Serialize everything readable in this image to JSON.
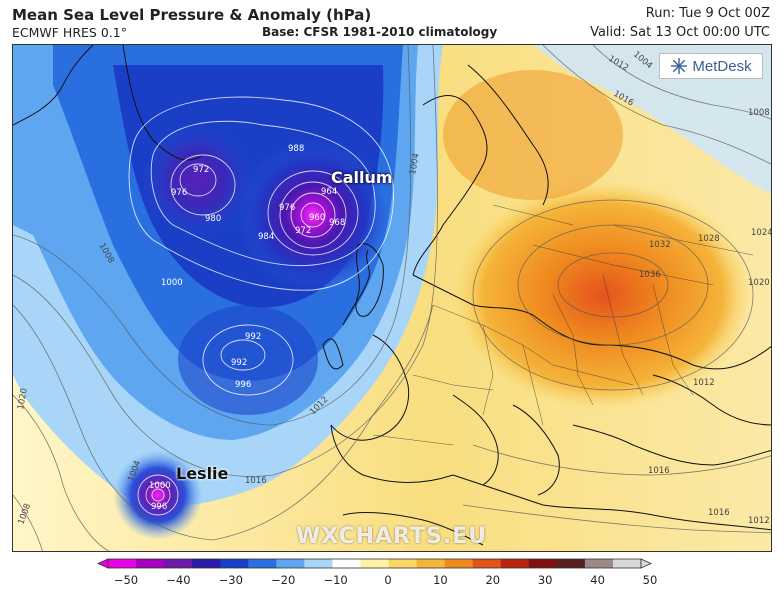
{
  "header": {
    "title": "Mean Sea Level Pressure & Anomaly (hPa)",
    "model": "ECMWF HRES 0.1°",
    "base": "Base: CFSR 1981-2010 climatology",
    "run": "Run: Tue 9 Oct 00Z",
    "valid": "Valid: Sat 13 Oct 00:00 UTC"
  },
  "logo": {
    "text": "MetDesk",
    "icon": "metdesk-logo-icon"
  },
  "watermark": "WXCHARTS.EU",
  "storms": {
    "callum": "Callum",
    "leslie": "Leslie"
  },
  "isobar_labels": [
    "972",
    "976",
    "980",
    "984",
    "988",
    "964",
    "960",
    "968",
    "972",
    "976",
    "992",
    "996",
    "1000",
    "1004",
    "1008",
    "1012",
    "1016",
    "1020",
    "1024",
    "1028",
    "1032",
    "1036",
    "1000",
    "1004",
    "1008",
    "996",
    "992",
    "1012",
    "1016",
    "1020",
    "1004",
    "1008",
    "1012",
    "1016",
    "1012",
    "1016"
  ],
  "colorbar": {
    "ticks": [
      "−50",
      "−40",
      "−30",
      "−20",
      "−10",
      "0",
      "10",
      "20",
      "30",
      "40",
      "50"
    ],
    "colors": [
      "#e800e8",
      "#a800c0",
      "#6a1aa8",
      "#2a1aa8",
      "#1a3fc6",
      "#2a6fe0",
      "#5ea6f0",
      "#a9d6f8",
      "#ffffff",
      "#fff1a8",
      "#f9d765",
      "#f5b43a",
      "#ef8a1f",
      "#e0541a",
      "#b8230f",
      "#801010",
      "#582020",
      "#9a8a8a",
      "#d8d8d8"
    ]
  }
}
